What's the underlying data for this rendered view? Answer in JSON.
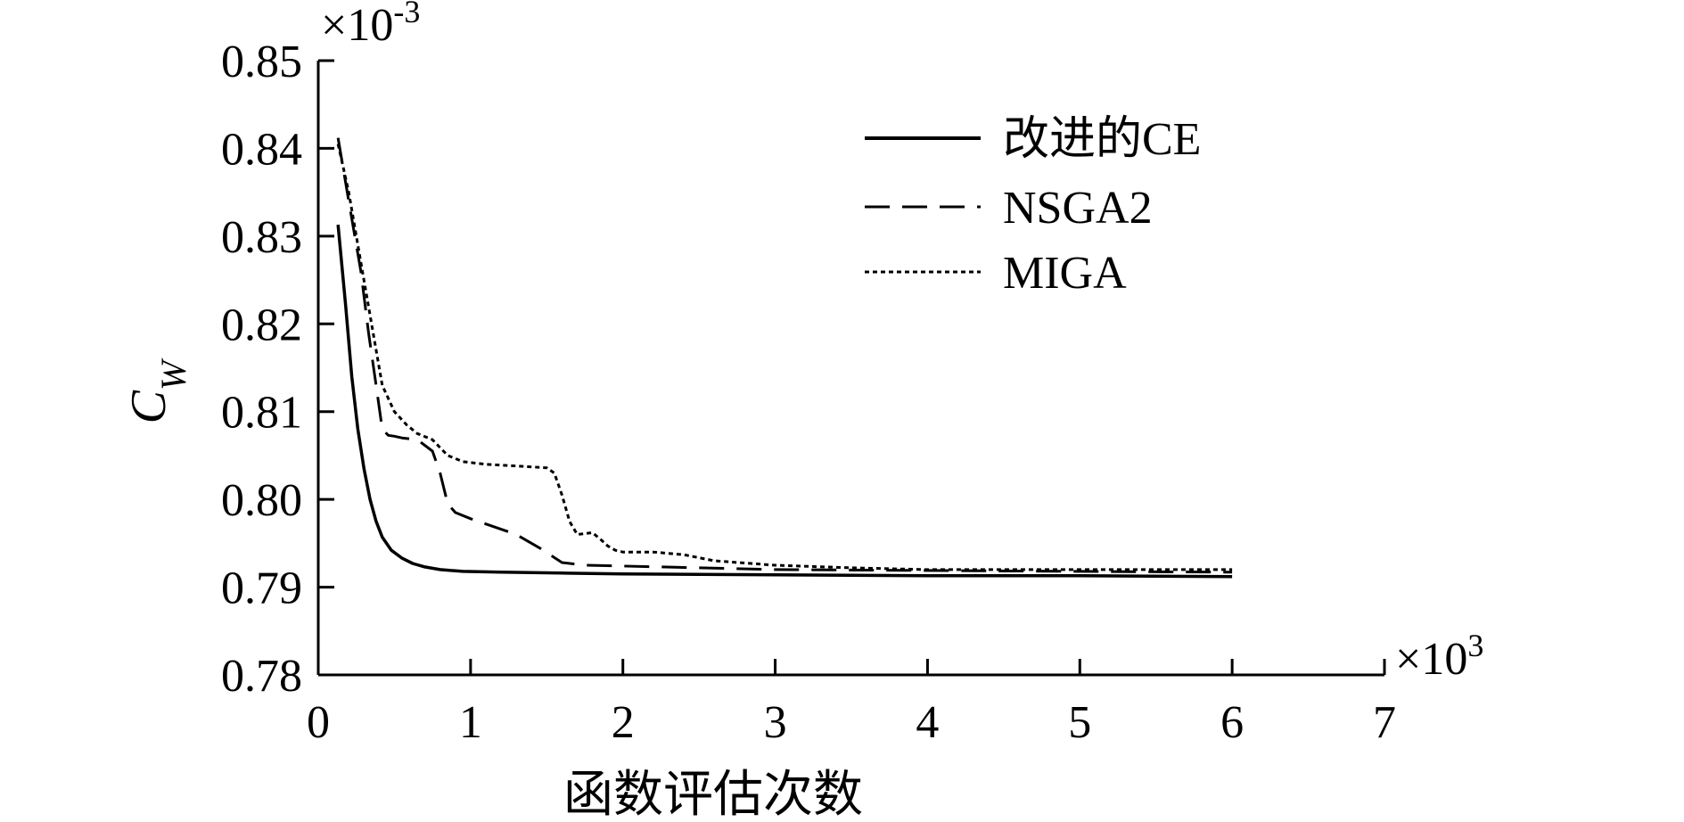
{
  "chart_data": {
    "type": "line",
    "xlabel": "函数评估次数",
    "ylabel": "C",
    "ylabel_sub": "W",
    "x_multiplier": "×10",
    "x_multiplier_exp": "3",
    "y_multiplier": "×10",
    "y_multiplier_exp": "-3",
    "xlim": [
      0,
      7
    ],
    "ylim": [
      0.78,
      0.85
    ],
    "x_ticks": [
      0,
      1,
      2,
      3,
      4,
      5,
      6,
      7
    ],
    "x_tick_labels": [
      "0",
      "1",
      "2",
      "3",
      "4",
      "5",
      "6",
      "7"
    ],
    "y_ticks": [
      0.78,
      0.79,
      0.8,
      0.81,
      0.82,
      0.83,
      0.84,
      0.85
    ],
    "y_tick_labels": [
      "0.78",
      "0.79",
      "0.80",
      "0.81",
      "0.82",
      "0.83",
      "0.84",
      "0.85"
    ],
    "grid": false,
    "legend_position": "top-right",
    "series": [
      {
        "name": "改进的CE",
        "style": "solid",
        "color": "#000000",
        "x": [
          0.13,
          0.18,
          0.22,
          0.26,
          0.3,
          0.34,
          0.38,
          0.42,
          0.48,
          0.55,
          0.62,
          0.7,
          0.8,
          0.95,
          1.2,
          1.6,
          2.0,
          3.0,
          4.0,
          5.0,
          6.0
        ],
        "y": [
          0.8313,
          0.822,
          0.814,
          0.808,
          0.8035,
          0.8,
          0.7975,
          0.7957,
          0.7942,
          0.7933,
          0.7927,
          0.7923,
          0.792,
          0.7918,
          0.7917,
          0.7916,
          0.7915,
          0.7914,
          0.7913,
          0.7913,
          0.7912
        ]
      },
      {
        "name": "NSGA2",
        "style": "dashed",
        "color": "#000000",
        "x": [
          0.13,
          0.2,
          0.28,
          0.33,
          0.38,
          0.42,
          0.46,
          0.5,
          0.55,
          0.65,
          0.75,
          0.8,
          0.85,
          0.9,
          1.0,
          1.1,
          1.3,
          1.45,
          1.6,
          1.75,
          2.0,
          2.5,
          3.0,
          4.0,
          5.0,
          6.0
        ],
        "y": [
          0.8412,
          0.834,
          0.826,
          0.819,
          0.813,
          0.808,
          0.8073,
          0.8072,
          0.807,
          0.8068,
          0.8055,
          0.803,
          0.7995,
          0.7985,
          0.7978,
          0.7972,
          0.796,
          0.7945,
          0.7928,
          0.7925,
          0.7924,
          0.7922,
          0.792,
          0.7919,
          0.7918,
          0.7917
        ]
      },
      {
        "name": "MIGA",
        "style": "dotted",
        "color": "#000000",
        "x": [
          0.13,
          0.2,
          0.28,
          0.35,
          0.42,
          0.5,
          0.58,
          0.65,
          0.75,
          0.85,
          0.95,
          1.1,
          1.3,
          1.5,
          1.55,
          1.6,
          1.65,
          1.7,
          1.8,
          1.85,
          1.9,
          1.95,
          2.0,
          2.2,
          2.4,
          2.6,
          3.0,
          3.5,
          4.0,
          5.0,
          6.0
        ],
        "y": [
          0.8405,
          0.835,
          0.827,
          0.82,
          0.813,
          0.81,
          0.8085,
          0.8075,
          0.8068,
          0.805,
          0.8043,
          0.804,
          0.8038,
          0.8036,
          0.803,
          0.8005,
          0.7975,
          0.796,
          0.7962,
          0.7955,
          0.7947,
          0.7942,
          0.794,
          0.794,
          0.7937,
          0.793,
          0.7925,
          0.7922,
          0.792,
          0.792,
          0.792
        ]
      }
    ]
  }
}
